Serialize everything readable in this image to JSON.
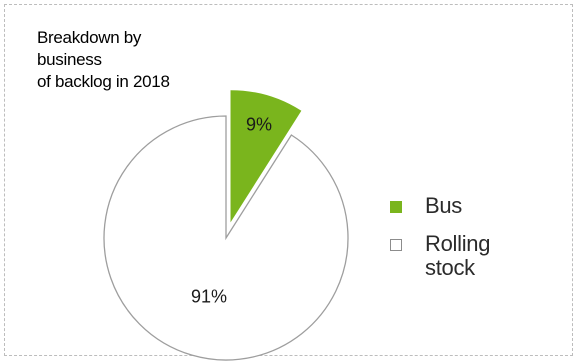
{
  "chart_data": {
    "type": "pie",
    "title_lines": [
      "Breakdown by",
      "business",
      "of backlog in 2018"
    ],
    "slices": [
      {
        "name": "Bus",
        "value": 9,
        "label": "9%",
        "color": "#7ab51d",
        "exploded": true
      },
      {
        "name": "Rolling stock",
        "value": 91,
        "label": "91%",
        "color": "#ffffff",
        "exploded": false
      }
    ],
    "legend": {
      "placement": "right",
      "items": [
        {
          "label_lines": [
            "Bus"
          ],
          "color": "#7ab51d",
          "icon": "filled-square"
        },
        {
          "label_lines": [
            "Rolling",
            "stock"
          ],
          "color": "#ffffff",
          "icon": "outlined-square"
        }
      ]
    }
  }
}
